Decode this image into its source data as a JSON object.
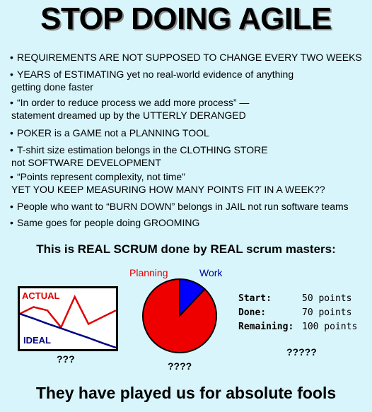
{
  "title": "STOP DOING AGILE",
  "bullets": [
    {
      "line1": "REQUIREMENTS ARE NOT SUPPOSED TO CHANGE EVERY TWO WEEKS",
      "line2": ""
    },
    {
      "line1": "YEARS of ESTIMATING yet no real-world evidence of anything",
      "line2": "getting done faster"
    },
    {
      "line1": "“In order to reduce process we add more process” —",
      "line2": "statement dreamed up by the UTTERLY DERANGED"
    },
    {
      "line1": "POKER is a GAME not a PLANNING TOOL",
      "line2": ""
    },
    {
      "line1": "T-shirt size estimation belongs in the CLOTHING STORE",
      "line2": "not SOFTWARE DEVELOPMENT"
    },
    {
      "line1": "“Points represent complexity, not time”",
      "line2": "YET YOU KEEP MEASURING HOW MANY POINTS FIT IN A WEEK??"
    },
    {
      "line1": "People who want to “BURN DOWN” belongs in JAIL not run software teams",
      "line2": ""
    },
    {
      "line1": "Same goes for people doing GROOMING",
      "line2": ""
    }
  ],
  "bullet_symbol": "•",
  "section_heading": "This is REAL SCRUM done by REAL scrum masters:",
  "chart_data": [
    {
      "type": "line",
      "series": [
        {
          "name": "ACTUAL",
          "color": "#e00000",
          "values": [
            10,
            12,
            11,
            6,
            15,
            7,
            9,
            11
          ]
        },
        {
          "name": "IDEAL",
          "color": "#000080",
          "values": [
            10,
            8.6,
            7.1,
            5.7,
            4.3,
            2.9,
            1.4,
            0
          ]
        }
      ],
      "caption": "???"
    },
    {
      "type": "pie",
      "slices": [
        {
          "name": "Planning",
          "value": 88,
          "color": "#ee0000"
        },
        {
          "name": "Work",
          "value": 12,
          "color": "#0000ff"
        }
      ],
      "caption": "????"
    }
  ],
  "stats": [
    {
      "key": "Start:",
      "value": "50 points"
    },
    {
      "key": "Done:",
      "value": "70 points"
    },
    {
      "key": "Remaining:",
      "value": "100 points"
    }
  ],
  "stats_caption": "?????",
  "footer": "They have played us for absolute fools"
}
